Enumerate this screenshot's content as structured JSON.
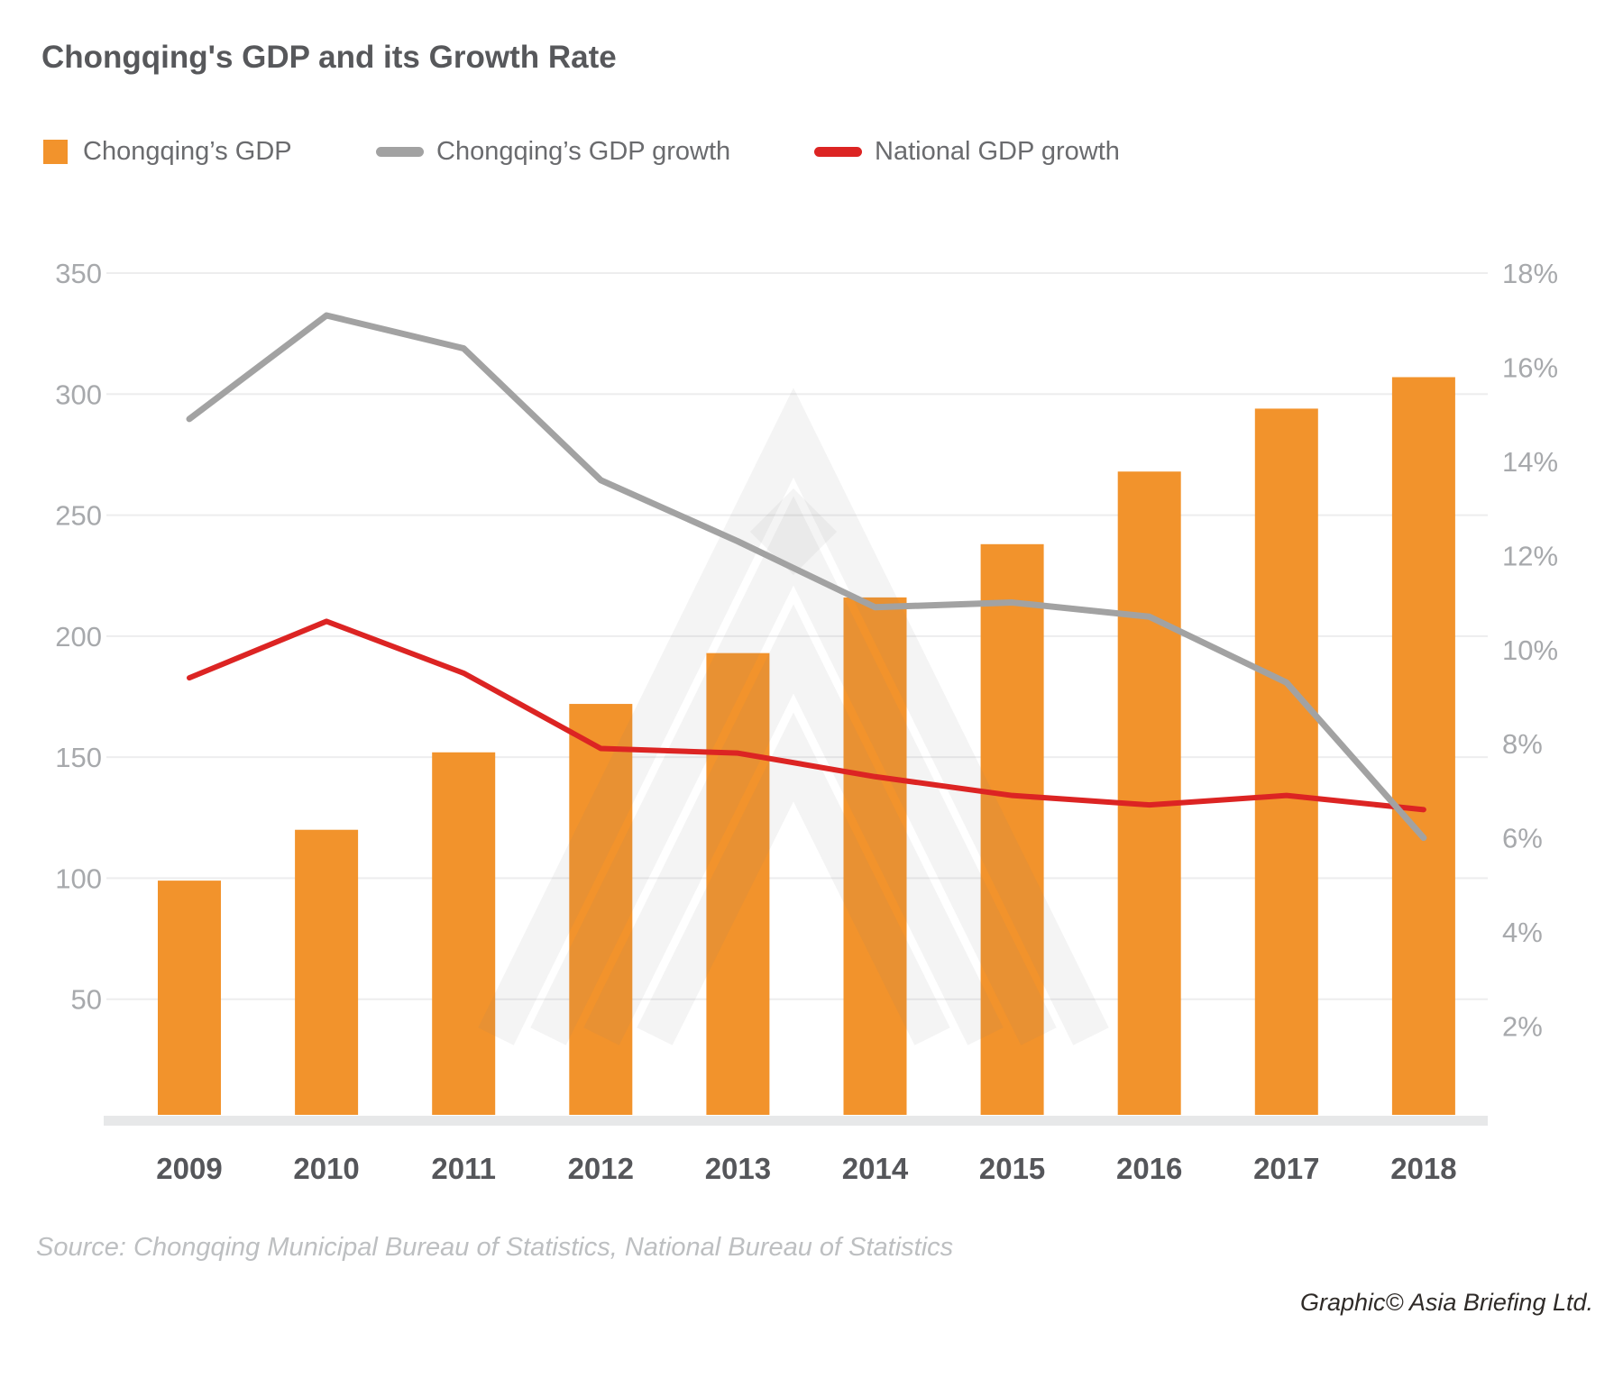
{
  "title": "Chongqing's GDP and its Growth Rate",
  "legend": [
    {
      "label": "Chongqing’s GDP",
      "marker": "square",
      "color": "#F2932C"
    },
    {
      "label": "Chongqing’s GDP growth",
      "marker": "dash",
      "color": "#A2A2A2"
    },
    {
      "label": "National GDP growth",
      "marker": "dash",
      "color": "#DC2423"
    }
  ],
  "watermark_icon": "asia-briefing-chevron-logo",
  "source": "Source: Chongqing Municipal Bureau of Statistics, National Bureau of Statistics",
  "credit": "Graphic© Asia Briefing Ltd.",
  "chart_data": {
    "type": "bar",
    "subtype": "combo-bar-line-dual-axis",
    "categories": [
      "2009",
      "2010",
      "2011",
      "2012",
      "2013",
      "2014",
      "2015",
      "2016",
      "2017",
      "2018"
    ],
    "series": [
      {
        "name": "Chongqing's GDP",
        "type": "bar",
        "axis": "left",
        "color": "#F2932C",
        "values": [
          99,
          120,
          152,
          172,
          193,
          216,
          238,
          268,
          294,
          307
        ]
      },
      {
        "name": "Chongqing's GDP growth",
        "type": "line",
        "axis": "right",
        "color": "#A2A2A2",
        "values": [
          14.9,
          17.1,
          16.4,
          13.6,
          12.3,
          10.9,
          11.0,
          10.7,
          9.3,
          6.0
        ]
      },
      {
        "name": "National GDP growth",
        "type": "line",
        "axis": "right",
        "color": "#DC2423",
        "values": [
          9.4,
          10.6,
          9.5,
          7.9,
          7.8,
          7.3,
          6.9,
          6.7,
          6.9,
          6.6
        ]
      }
    ],
    "left_axis": {
      "ticks": [
        50,
        100,
        150,
        200,
        250,
        300,
        350
      ],
      "range": [
        0,
        350
      ]
    },
    "right_axis": {
      "ticks": [
        "2%",
        "4%",
        "6%",
        "8%",
        "10%",
        "12%",
        "14%",
        "16%",
        "18%"
      ],
      "range": [
        0,
        18
      ]
    },
    "grid": "horizontal gridlines at left-axis ticks",
    "legend_position": "top-left"
  }
}
